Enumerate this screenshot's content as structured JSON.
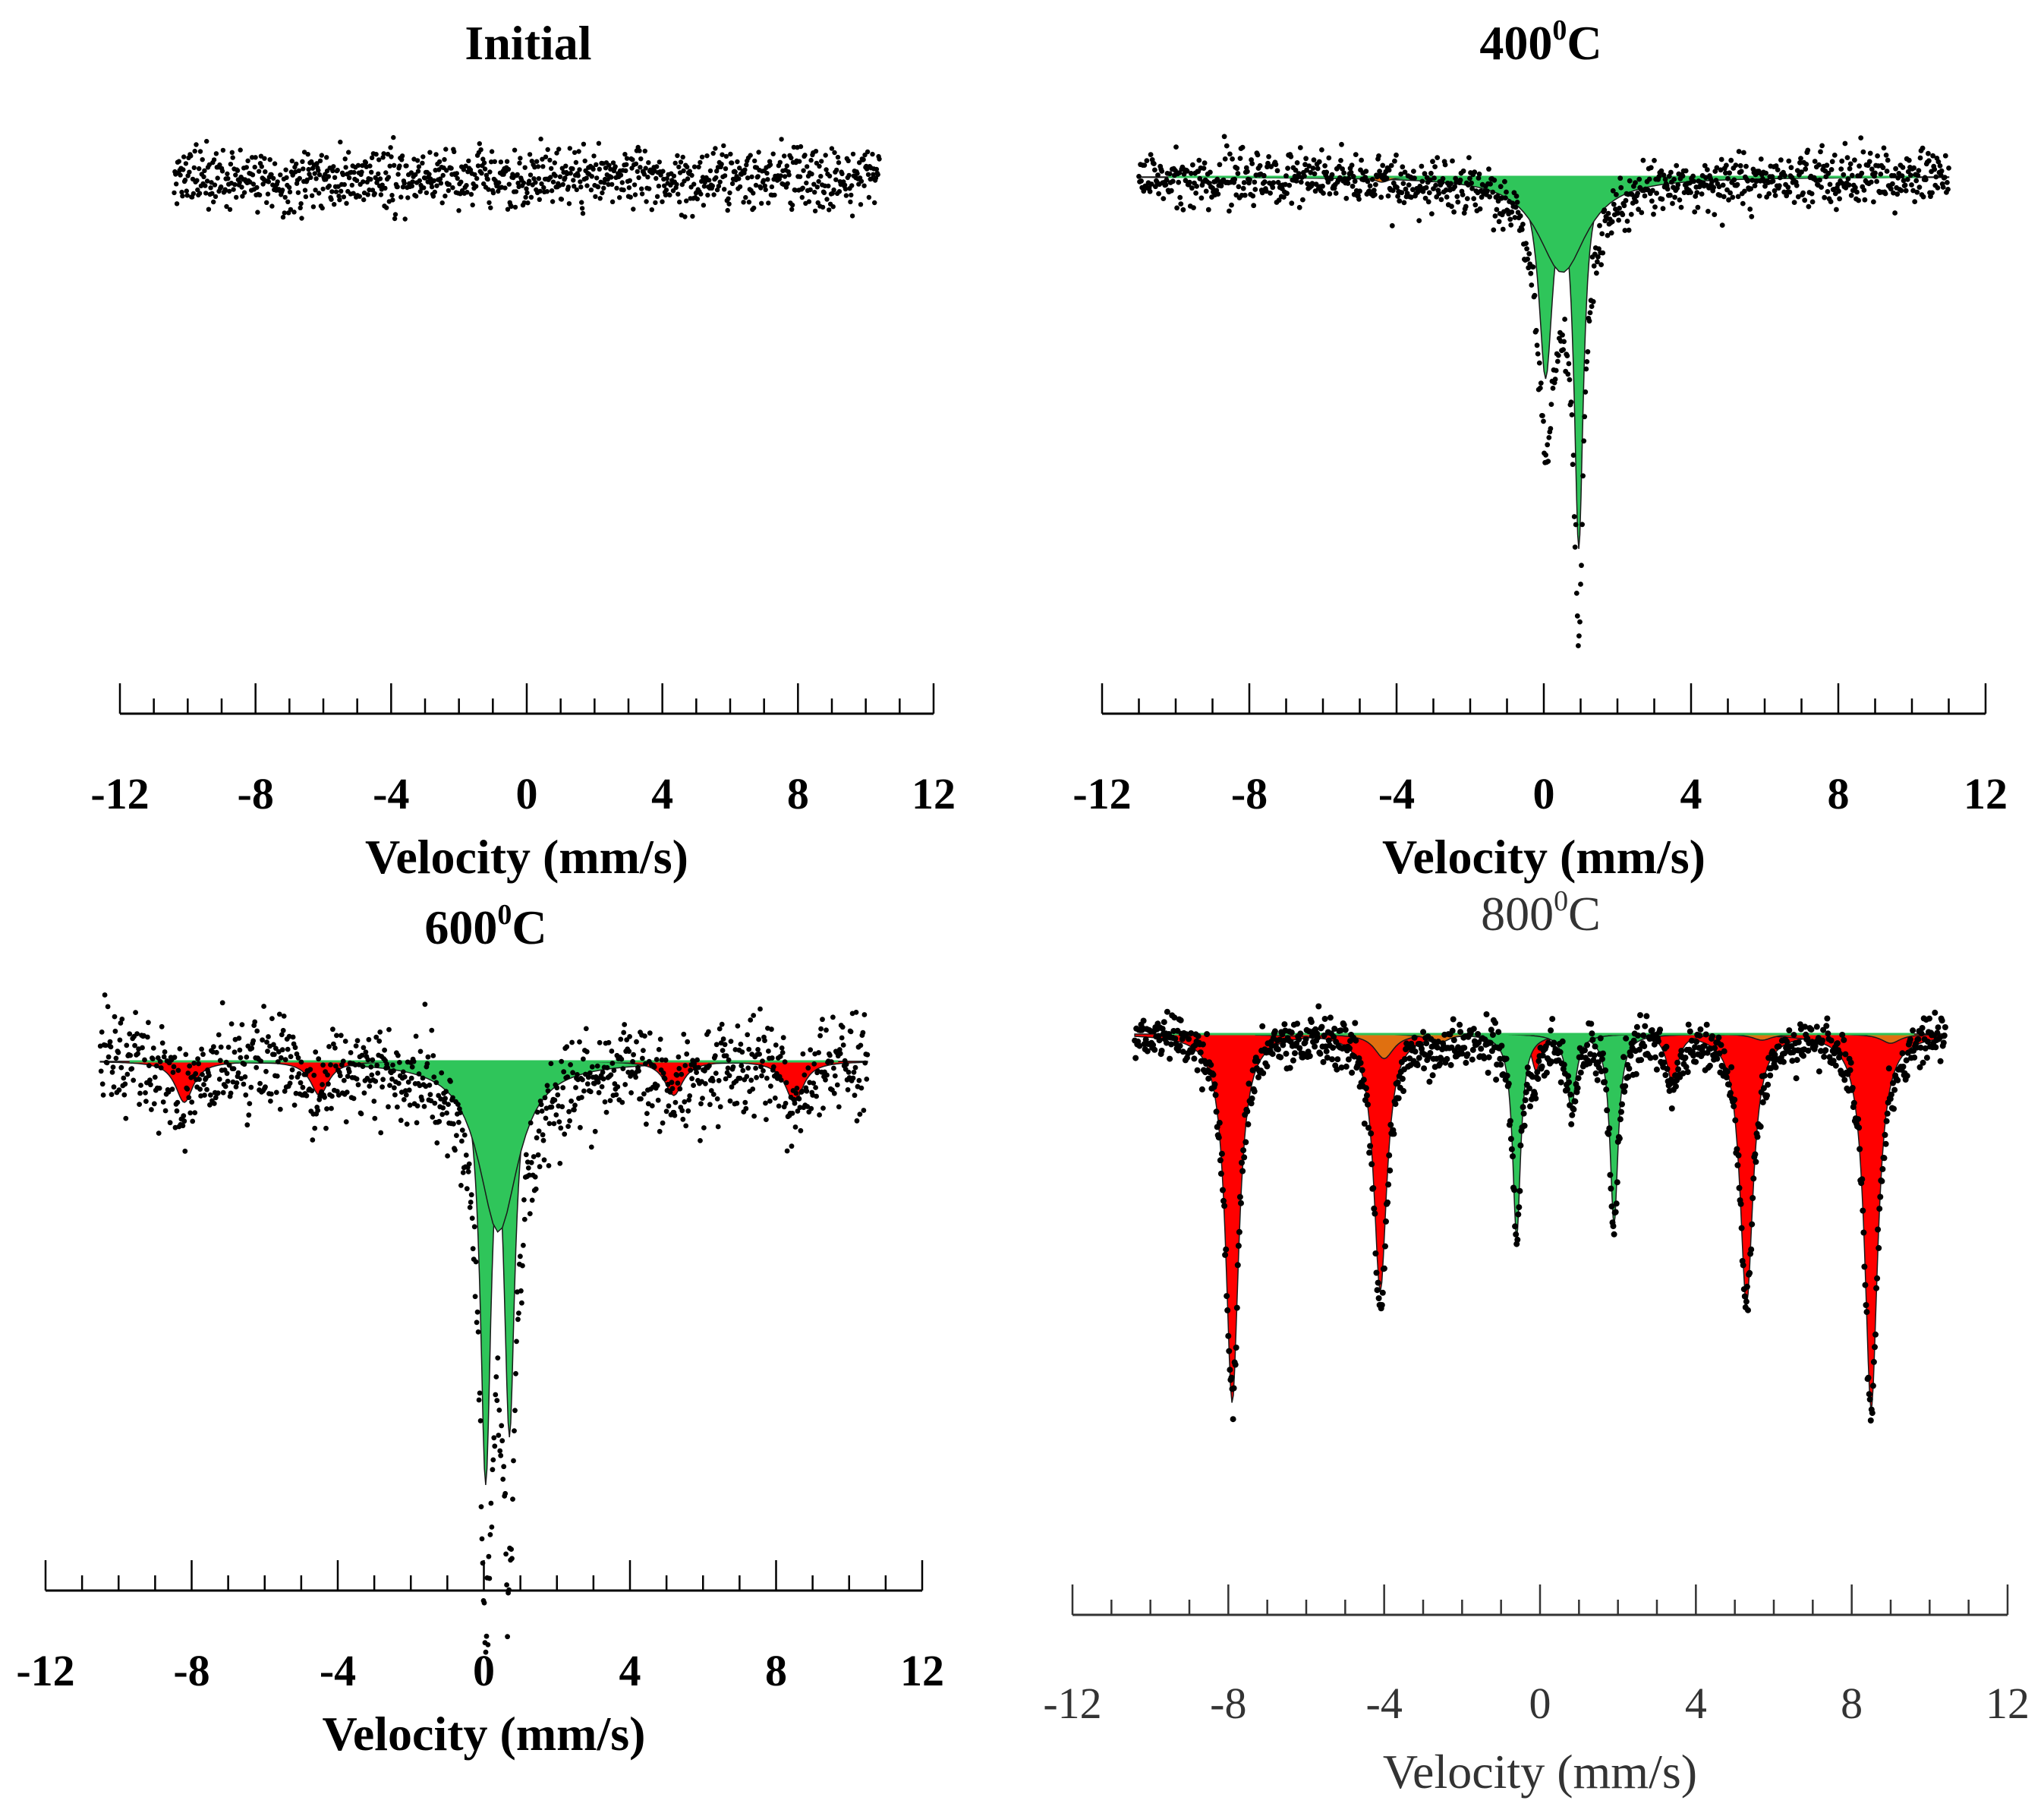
{
  "chart_data": [
    {
      "type": "scatter",
      "title": "Initial",
      "title_main": "Initial",
      "title_sup": "",
      "title_suffix": "",
      "xlabel": "Velocity (mm/s)",
      "ylabel": "",
      "xlim": [
        -12,
        12
      ],
      "xticks": [
        "-12",
        "-8",
        "-4",
        "0",
        "4",
        "8",
        "12"
      ],
      "data_range": [
        -10.4,
        10.4
      ],
      "noise": 0.028,
      "grid": false,
      "style": "bold",
      "colors": {
        "data": "#000000",
        "green": "#2fc55a",
        "red": "#ff0000",
        "orange": "#e07010"
      },
      "series": []
    },
    {
      "type": "scatter",
      "title": "400°C",
      "title_main": "400",
      "title_sup": "0",
      "title_suffix": "C",
      "xlabel": "Velocity (mm/s)",
      "ylabel": "",
      "xlim": [
        -12,
        12
      ],
      "xticks": [
        "-12",
        "-8",
        "-4",
        "0",
        "4",
        "8",
        "12"
      ],
      "data_range": [
        -11.0,
        11.0
      ],
      "noise": 0.025,
      "grid": false,
      "style": "bold",
      "colors": {
        "data": "#000000",
        "green": "#2fc55a",
        "red": "#ff0000",
        "orange": "#e07010"
      },
      "series": [
        {
          "name": "doublet",
          "color": "#2fc55a",
          "lines": [
            {
              "v": 0.05,
              "depth": 0.38,
              "w": 0.45
            },
            {
              "v": 0.95,
              "depth": 0.7,
              "w": 0.3
            },
            {
              "v": 0.5,
              "depth": 0.18,
              "w": 1.6
            }
          ]
        },
        {
          "name": "minor",
          "color": "#e07010",
          "lines": [
            {
              "v": -4.4,
              "depth": 0.01,
              "w": 0.5
            }
          ]
        }
      ]
    },
    {
      "type": "scatter",
      "title": "600°C",
      "title_main": "600",
      "title_sup": "0",
      "title_suffix": "C",
      "xlabel": "Velocity (mm/s)",
      "ylabel": "",
      "xlim": [
        -12,
        12
      ],
      "xticks": [
        "-12",
        "-8",
        "-4",
        "0",
        "4",
        "8",
        "12"
      ],
      "data_range": [
        -10.5,
        10.5
      ],
      "noise": 0.035,
      "grid": false,
      "style": "bold",
      "colors": {
        "data": "#000000",
        "green": "#2fc55a",
        "red": "#ff0000",
        "orange": "#e07010"
      },
      "series": [
        {
          "name": "doublet",
          "color": "#2fc55a",
          "lines": [
            {
              "v": 0.05,
              "depth": 0.62,
              "w": 0.35
            },
            {
              "v": 0.7,
              "depth": 0.55,
              "w": 0.35
            },
            {
              "v": 0.4,
              "depth": 0.25,
              "w": 1.3
            }
          ]
        },
        {
          "name": "sextet",
          "color": "#ff0000",
          "lines": [
            {
              "v": -8.2,
              "depth": 0.06,
              "w": 0.6
            },
            {
              "v": -4.5,
              "depth": 0.05,
              "w": 0.6
            },
            {
              "v": 5.2,
              "depth": 0.05,
              "w": 0.6
            },
            {
              "v": 8.5,
              "depth": 0.06,
              "w": 0.6
            }
          ]
        }
      ]
    },
    {
      "type": "scatter",
      "title": "800°C",
      "title_main": "800",
      "title_sup": "0",
      "title_suffix": "C",
      "xlabel": "Velocity (mm/s)",
      "ylabel": "",
      "xlim": [
        -12,
        12
      ],
      "xticks": [
        "-12",
        "-8",
        "-4",
        "0",
        "4",
        "8",
        "12"
      ],
      "data_range": [
        -10.4,
        10.4
      ],
      "noise": 0.02,
      "grid": false,
      "style": "light",
      "colors": {
        "data": "#000000",
        "green": "#2fc55a",
        "red": "#ff0000",
        "orange": "#e07010"
      },
      "series": [
        {
          "name": "sextet",
          "color": "#ff0000",
          "lines": [
            {
              "v": -7.9,
              "depth": 0.6,
              "w": 0.4
            },
            {
              "v": -4.1,
              "depth": 0.42,
              "w": 0.4
            },
            {
              "v": 5.3,
              "depth": 0.44,
              "w": 0.4
            },
            {
              "v": 8.5,
              "depth": 0.61,
              "w": 0.4
            },
            {
              "v": 3.4,
              "depth": 0.08,
              "w": 0.35
            },
            {
              "v": -0.1,
              "depth": 0.06,
              "w": 0.3
            }
          ]
        },
        {
          "name": "doublet",
          "color": "#2fc55a",
          "lines": [
            {
              "v": -0.6,
              "depth": 0.33,
              "w": 0.25
            },
            {
              "v": 1.9,
              "depth": 0.31,
              "w": 0.25
            },
            {
              "v": 0.8,
              "depth": 0.12,
              "w": 0.3
            }
          ]
        },
        {
          "name": "minor",
          "color": "#e07010",
          "lines": [
            {
              "v": -4.0,
              "depth": 0.04,
              "w": 0.6
            },
            {
              "v": -2.6,
              "depth": 0.015,
              "w": 0.6
            },
            {
              "v": 5.7,
              "depth": 0.01,
              "w": 0.6
            },
            {
              "v": 9.0,
              "depth": 0.015,
              "w": 0.6
            }
          ]
        }
      ]
    }
  ]
}
